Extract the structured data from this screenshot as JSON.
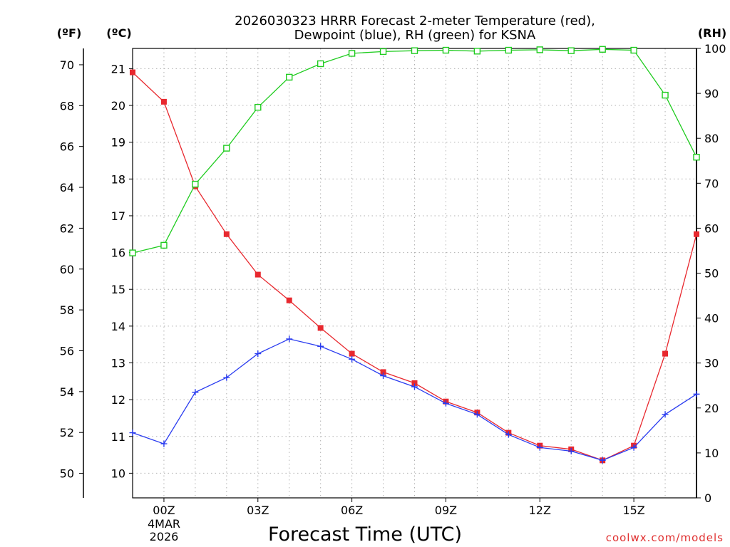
{
  "chart_data": {
    "type": "line",
    "title_line1": "2026030323 HRRR Forecast 2-meter Temperature (red),",
    "title_line2": "Dewpoint (blue), RH (green) for KSNA",
    "xlabel": "Forecast Time (UTC)",
    "unit_label_f": "(ºF)",
    "unit_label_c": "(ºC)",
    "unit_label_rh": "(RH)",
    "watermark": "coolwx.com/models",
    "x_date_line1": "4MAR",
    "x_date_line2": "2026",
    "x_hours": [
      -1,
      0,
      1,
      2,
      3,
      4,
      5,
      6,
      7,
      8,
      9,
      10,
      11,
      12,
      13,
      14,
      15,
      16,
      17
    ],
    "x_ticks": [
      {
        "hour": 0,
        "label": "00Z"
      },
      {
        "hour": 3,
        "label": "03Z"
      },
      {
        "hour": 6,
        "label": "06Z"
      },
      {
        "hour": 9,
        "label": "09Z"
      },
      {
        "hour": 12,
        "label": "12Z"
      },
      {
        "hour": 15,
        "label": "15Z"
      }
    ],
    "xlim": [
      -1,
      17
    ],
    "celsius_axis": {
      "lim": [
        9.33,
        21.55
      ],
      "ticks": [
        "10",
        "11",
        "12",
        "13",
        "14",
        "15",
        "16",
        "17",
        "18",
        "19",
        "20",
        "21"
      ]
    },
    "fahrenheit_axis": {
      "lim": [
        48.8,
        70.8
      ],
      "ticks": [
        "50",
        "52",
        "54",
        "56",
        "58",
        "60",
        "62",
        "64",
        "66",
        "68",
        "70"
      ]
    },
    "rh_axis": {
      "lim": [
        0,
        100
      ],
      "ticks": [
        "0",
        "10",
        "20",
        "30",
        "40",
        "50",
        "60",
        "70",
        "80",
        "90",
        "100"
      ]
    },
    "series": [
      {
        "name": "Temperature",
        "unit": "C",
        "color": "#e8282e",
        "values": [
          20.9,
          20.1,
          17.8,
          16.5,
          15.4,
          14.7,
          13.95,
          13.25,
          12.75,
          12.45,
          11.95,
          11.65,
          11.1,
          10.75,
          10.65,
          10.35,
          10.75,
          13.25,
          16.5
        ]
      },
      {
        "name": "Dewpoint",
        "unit": "C",
        "color": "#2a3cf0",
        "values": [
          11.1,
          10.8,
          12.2,
          12.6,
          13.25,
          13.65,
          13.45,
          13.1,
          12.65,
          12.35,
          11.9,
          11.6,
          11.05,
          10.7,
          10.6,
          10.35,
          10.7,
          11.6,
          12.15
        ]
      },
      {
        "name": "RH",
        "unit": "%",
        "color": "#20cc20",
        "values": [
          54.5,
          56.2,
          69.8,
          77.8,
          86.9,
          93.6,
          96.6,
          98.9,
          99.3,
          99.5,
          99.6,
          99.4,
          99.6,
          99.7,
          99.5,
          99.8,
          99.6,
          89.6,
          75.8
        ]
      }
    ]
  }
}
